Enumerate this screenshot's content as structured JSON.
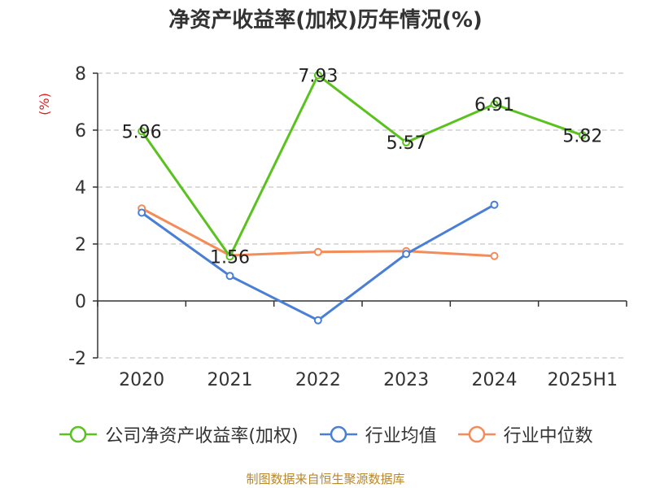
{
  "chart_data": {
    "type": "line",
    "title": "净资产收益率(加权)历年情况(%)",
    "ylabel": "(%)",
    "ylabel_color": "#e02020",
    "categories": [
      "2020",
      "2021",
      "2022",
      "2023",
      "2024",
      "2025H1"
    ],
    "ylim": [
      -2,
      8
    ],
    "yticks": [
      -2,
      0,
      2,
      4,
      6,
      8
    ],
    "grid": true,
    "legend_position": "bottom",
    "series": [
      {
        "name": "公司净资产收益率(加权)",
        "color": "#5ac21f",
        "values": [
          5.96,
          1.56,
          7.93,
          5.57,
          6.91,
          5.82
        ],
        "labels": [
          "5.96",
          "1.56",
          "7.93",
          "5.57",
          "6.91",
          "5.82"
        ],
        "show_labels": true
      },
      {
        "name": "行业均值",
        "color": "#4a7fd6",
        "values": [
          3.1,
          0.88,
          -0.68,
          1.65,
          3.38,
          null
        ],
        "show_labels": false
      },
      {
        "name": "行业中位数",
        "color": "#f48c5a",
        "values": [
          3.25,
          1.6,
          1.72,
          1.75,
          1.58,
          null
        ],
        "show_labels": false
      }
    ]
  },
  "source": "制图数据来自恒生聚源数据库"
}
